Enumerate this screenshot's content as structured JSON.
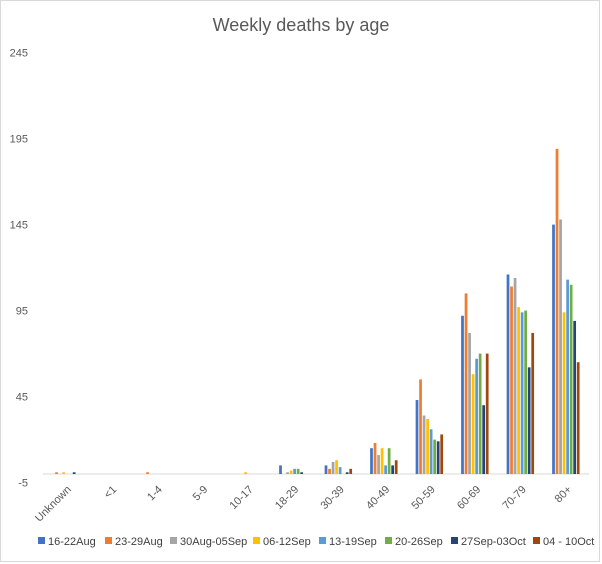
{
  "chart_data": {
    "type": "bar",
    "title": "Weekly deaths by age",
    "xlabel": "",
    "ylabel": "",
    "ylim": [
      -5,
      245
    ],
    "yticks": [
      -5,
      45,
      95,
      145,
      195,
      245
    ],
    "grid": false,
    "legend": "bottom",
    "categories": [
      "Unknown",
      "<1",
      "1-4",
      "5-9",
      "10-17",
      "18-29",
      "30-39",
      "40-49",
      "50-59",
      "60-69",
      "70-79",
      "80+"
    ],
    "series": [
      {
        "name": "16-22Aug",
        "color": "#4472C4",
        "values": [
          0,
          0,
          0,
          0,
          0,
          5,
          5,
          15,
          43,
          92,
          116,
          145
        ]
      },
      {
        "name": "23-29Aug",
        "color": "#ED7D31",
        "values": [
          1,
          0,
          1,
          0,
          0,
          0,
          3,
          18,
          55,
          105,
          109,
          189
        ]
      },
      {
        "name": "30Aug-05Sep",
        "color": "#A5A5A5",
        "values": [
          0,
          0,
          0,
          0,
          0,
          1,
          7,
          11,
          34,
          82,
          114,
          148
        ]
      },
      {
        "name": "06-12Sep",
        "color": "#FFC000",
        "values": [
          1,
          0,
          0,
          0,
          1,
          2,
          8,
          15,
          32,
          58,
          97,
          94
        ]
      },
      {
        "name": "13-19Sep",
        "color": "#5B9BD5",
        "values": [
          0,
          0,
          0,
          0,
          0,
          3,
          4,
          5,
          26,
          67,
          94,
          113
        ]
      },
      {
        "name": "20-26Sep",
        "color": "#70AD47",
        "values": [
          0,
          0,
          0,
          0,
          0,
          3,
          0,
          15,
          20,
          70,
          95,
          110
        ]
      },
      {
        "name": "27Sep-03Oct",
        "color": "#264478",
        "values": [
          1,
          0,
          0,
          0,
          0,
          1,
          1,
          5,
          19,
          40,
          62,
          89
        ]
      },
      {
        "name": "04 - 10Oct",
        "color": "#9E480E",
        "values": [
          0,
          0,
          0,
          0,
          0,
          0,
          3,
          8,
          23,
          70,
          82,
          65
        ]
      }
    ]
  }
}
